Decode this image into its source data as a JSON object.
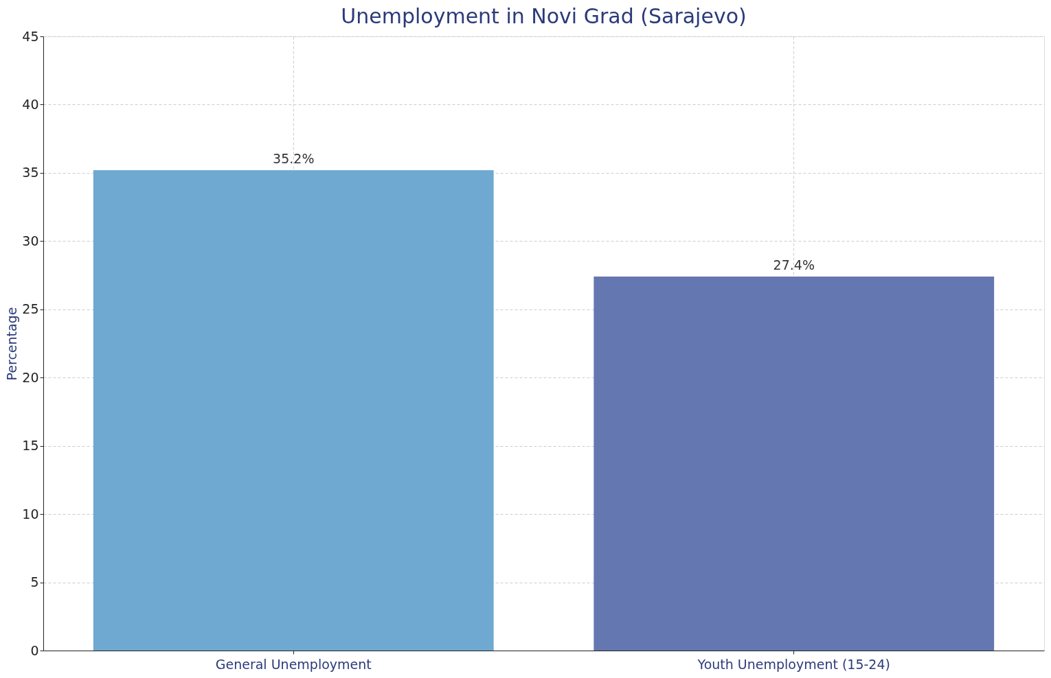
{
  "chart_data": {
    "type": "bar",
    "title": "Unemployment in Novi Grad (Sarajevo)",
    "ylabel": "Percentage",
    "categories": [
      "General Unemployment",
      "Youth Unemployment (15-24)"
    ],
    "values": [
      35.2,
      27.4
    ],
    "colors": [
      "#6fa9d1",
      "#6577b0"
    ],
    "value_labels": [
      "35.2%",
      "27.4%"
    ],
    "ylim": [
      0,
      45
    ],
    "yticks": [
      0,
      5,
      10,
      15,
      20,
      25,
      30,
      35,
      40,
      45
    ],
    "grid": true
  }
}
